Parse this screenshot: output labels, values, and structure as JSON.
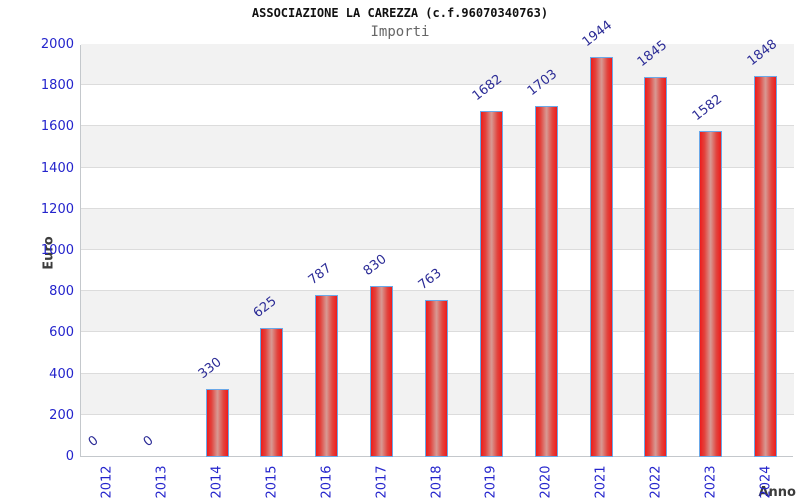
{
  "chart_data": {
    "type": "bar",
    "title": "ASSOCIAZIONE LA CAREZZA (c.f.96070340763)",
    "subtitle": "Importi",
    "xlabel": "Anno",
    "ylabel": "Euro",
    "categories": [
      "2012",
      "2013",
      "2014",
      "2015",
      "2016",
      "2017",
      "2018",
      "2019",
      "2020",
      "2021",
      "2022",
      "2023",
      "2024"
    ],
    "values": [
      0,
      0,
      330,
      625,
      787,
      830,
      763,
      1682,
      1703,
      1944,
      1845,
      1582,
      1848
    ],
    "value_labels": [
      "0",
      "0",
      "330",
      "625",
      "787",
      "830",
      "763",
      "1682",
      "1703",
      "1944",
      "1845",
      "1582",
      "1848"
    ],
    "ytick_labels": [
      "0",
      "200",
      "400",
      "600",
      "800",
      "1000",
      "1200",
      "1400",
      "1600",
      "1800",
      "2000"
    ],
    "ylim": [
      0,
      2000
    ],
    "ytick_step": 200,
    "grid": "horizontal-gridlines-with-alternating-bands",
    "legend": "none",
    "colors": {
      "title": "#111111",
      "subtitle": "#666666",
      "tick_label": "#2424cc",
      "value_label": "#2b2b96",
      "axis_title": "#3c3c3c",
      "bar_fill_edge": "#ee1c1c",
      "bar_fill_mid": "#e2443e",
      "bar_fill_center": "#d79a94",
      "bar_border": "#6aa8e8",
      "band_gray": "#f2f2f2",
      "band_white": "#ffffff",
      "gridline": "#dcdcdc",
      "plot_border": "#c4c8cc",
      "background": "#ffffff"
    }
  }
}
